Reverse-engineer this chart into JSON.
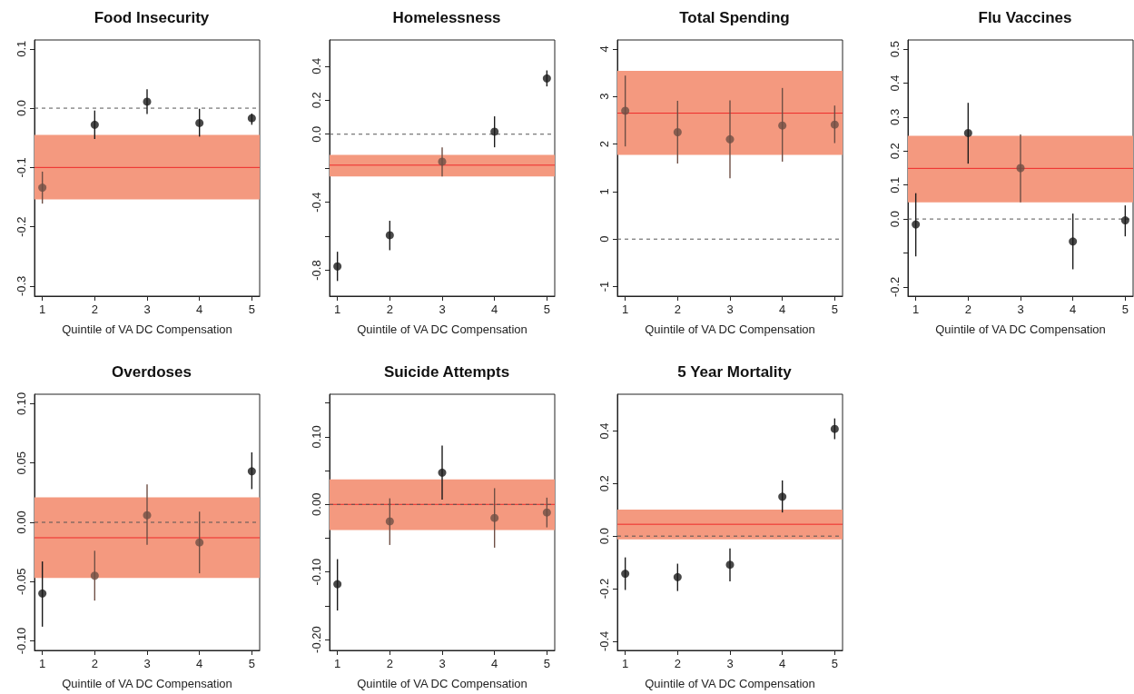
{
  "chart_data": [
    {
      "type": "scatter",
      "title": "Food Insecurity",
      "xlabel": "Quintile of VA DC Compensation",
      "x": [
        1,
        2,
        3,
        4,
        5
      ],
      "xlim": [
        0.85,
        5.15
      ],
      "xticks": [
        1,
        2,
        3,
        4,
        5
      ],
      "ylim": [
        -0.317,
        0.115
      ],
      "yticks": [
        0.1,
        {
          "value": 0,
          "label": "0.0"
        },
        -0.1,
        -0.2,
        -0.3
      ],
      "grid": false,
      "marker": "circle",
      "values": [
        -0.134,
        -0.028,
        0.011,
        -0.025,
        -0.017
      ],
      "errors": [
        [
          -0.161,
          -0.107
        ],
        [
          -0.052,
          -0.004
        ],
        [
          -0.01,
          0.032
        ],
        [
          -0.048,
          -0.001
        ],
        [
          -0.028,
          -0.009
        ]
      ],
      "colors": [
        "#6e4f45",
        "#1a1a1a",
        "#1a1a1a",
        "#1a1a1a",
        "#1a1a1a"
      ],
      "ref_lines": [
        {
          "axis": "y",
          "value": 0,
          "color": "#555555",
          "line_style": "dashed"
        },
        {
          "axis": "y",
          "value": -0.1,
          "color": "#ee2a2a",
          "line_style": "solid"
        }
      ],
      "bands": [
        {
          "axis": "y",
          "from": -0.154,
          "to": -0.045,
          "color": "#f4997f"
        }
      ]
    },
    {
      "type": "scatter",
      "title": "Homelessness",
      "xlabel": "Quintile of VA DC Compensation",
      "x": [
        1,
        2,
        3,
        4,
        5
      ],
      "xlim": [
        0.85,
        5.15
      ],
      "xticks": [
        1,
        2,
        3,
        4,
        5
      ],
      "ylim": [
        -0.952,
        0.554
      ],
      "yticks": [
        0.4,
        0.2,
        {
          "value": 0,
          "label": "0.0"
        },
        {
          "value": -0.2,
          "label": null
        },
        -0.4,
        {
          "value": -0.6,
          "label": null
        },
        -0.8
      ],
      "grid": false,
      "marker": "circle",
      "values": [
        -0.777,
        -0.594,
        -0.161,
        0.015,
        0.328
      ],
      "errors": [
        [
          -0.863,
          -0.691
        ],
        [
          -0.682,
          -0.509
        ],
        [
          -0.249,
          -0.077
        ],
        [
          -0.077,
          0.105
        ],
        [
          0.281,
          0.375
        ]
      ],
      "colors": [
        "#1a1a1a",
        "#1a1a1a",
        "#6e4f45",
        "#1a1a1a",
        "#1a1a1a"
      ],
      "ref_lines": [
        {
          "axis": "y",
          "value": 0,
          "color": "#555555",
          "line_style": "dashed"
        },
        {
          "axis": "y",
          "value": -0.182,
          "color": "#ee2a2a",
          "line_style": "solid"
        }
      ],
      "bands": [
        {
          "axis": "y",
          "from": -0.249,
          "to": -0.122,
          "color": "#f4997f"
        }
      ]
    },
    {
      "type": "scatter",
      "title": "Total Spending",
      "xlabel": "Quintile of VA DC Compensation",
      "x": [
        1,
        2,
        3,
        4,
        5
      ],
      "xlim": [
        0.85,
        5.15
      ],
      "xticks": [
        1,
        2,
        3,
        4,
        5
      ],
      "ylim": [
        -1.2,
        4.19
      ],
      "yticks": [
        4,
        3,
        2,
        1,
        0,
        -1
      ],
      "grid": false,
      "marker": "circle",
      "values": [
        2.7,
        2.25,
        2.1,
        2.39,
        2.41
      ],
      "errors": [
        [
          1.95,
          3.44
        ],
        [
          1.59,
          2.91
        ],
        [
          1.28,
          2.92
        ],
        [
          1.63,
          3.18
        ],
        [
          2.02,
          2.81
        ]
      ],
      "colors": [
        "#6e4f45",
        "#6e4f45",
        "#6e4f45",
        "#6e4f45",
        "#6e4f45"
      ],
      "ref_lines": [
        {
          "axis": "y",
          "value": 0,
          "color": "#555555",
          "line_style": "dashed"
        },
        {
          "axis": "y",
          "value": 2.65,
          "color": "#ee2a2a",
          "line_style": "solid"
        }
      ],
      "bands": [
        {
          "axis": "y",
          "from": 1.77,
          "to": 3.54,
          "color": "#f4997f"
        }
      ]
    },
    {
      "type": "scatter",
      "title": "Flu Vaccines",
      "xlabel": "Quintile of VA DC Compensation",
      "x": [
        1,
        2,
        3,
        4,
        5
      ],
      "xlim": [
        0.85,
        5.15
      ],
      "xticks": [
        1,
        2,
        3,
        4,
        5
      ],
      "ylim": [
        -0.227,
        0.527
      ],
      "yticks": [
        0.5,
        0.4,
        0.3,
        0.2,
        0.1,
        {
          "value": 0,
          "label": "0.0"
        },
        {
          "value": -0.1,
          "label": null
        },
        -0.2
      ],
      "grid": false,
      "marker": "circle",
      "values": [
        -0.016,
        0.253,
        0.15,
        -0.066,
        -0.004
      ],
      "errors": [
        [
          -0.11,
          0.076
        ],
        [
          0.163,
          0.342
        ],
        [
          0.049,
          0.249
        ],
        [
          -0.148,
          0.016
        ],
        [
          -0.051,
          0.04
        ]
      ],
      "colors": [
        "#1a1a1a",
        "#1a1a1a",
        "#6e4f45",
        "#1a1a1a",
        "#1a1a1a"
      ],
      "ref_lines": [
        {
          "axis": "y",
          "value": 0,
          "color": "#555555",
          "line_style": "dashed"
        },
        {
          "axis": "y",
          "value": 0.149,
          "color": "#ee2a2a",
          "line_style": "solid"
        }
      ],
      "bands": [
        {
          "axis": "y",
          "from": 0.049,
          "to": 0.245,
          "color": "#f4997f"
        }
      ]
    },
    {
      "type": "scatter",
      "title": "Overdoses",
      "xlabel": "Quintile of VA DC Compensation",
      "x": [
        1,
        2,
        3,
        4,
        5
      ],
      "xlim": [
        0.85,
        5.15
      ],
      "xticks": [
        1,
        2,
        3,
        4,
        5
      ],
      "ylim": [
        -0.108,
        0.108
      ],
      "yticks": [
        {
          "value": 0.1,
          "label": "0.10"
        },
        0.05,
        {
          "value": 0,
          "label": "0.00"
        },
        -0.05,
        {
          "value": -0.1,
          "label": "-0.10"
        }
      ],
      "grid": false,
      "marker": "circle",
      "values": [
        -0.06,
        -0.045,
        0.006,
        -0.017,
        0.043
      ],
      "errors": [
        [
          -0.088,
          -0.033
        ],
        [
          -0.066,
          -0.024
        ],
        [
          -0.019,
          0.032
        ],
        [
          -0.043,
          0.009
        ],
        [
          0.028,
          0.059
        ]
      ],
      "colors": [
        "#1a1a1a",
        "#6e4f45",
        "#6e4f45",
        "#6e4f45",
        "#1a1a1a"
      ],
      "ref_lines": [
        {
          "axis": "y",
          "value": 0,
          "color": "#555555",
          "line_style": "dashed"
        },
        {
          "axis": "y",
          "value": -0.013,
          "color": "#ee2a2a",
          "line_style": "solid"
        }
      ],
      "bands": [
        {
          "axis": "y",
          "from": -0.047,
          "to": 0.021,
          "color": "#f4997f"
        }
      ]
    },
    {
      "type": "scatter",
      "title": "Suicide Attempts",
      "xlabel": "Quintile of VA DC Compensation",
      "x": [
        1,
        2,
        3,
        4,
        5
      ],
      "xlim": [
        0.85,
        5.15
      ],
      "xticks": [
        1,
        2,
        3,
        4,
        5
      ],
      "ylim": [
        -0.216,
        0.163
      ],
      "yticks": [
        {
          "value": 0.15,
          "label": null
        },
        {
          "value": 0.1,
          "label": "0.10"
        },
        {
          "value": 0.05,
          "label": null
        },
        {
          "value": 0,
          "label": "0.00"
        },
        {
          "value": -0.05,
          "label": null
        },
        {
          "value": -0.1,
          "label": "-0.10"
        },
        {
          "value": -0.15,
          "label": null
        },
        {
          "value": -0.2,
          "label": "-0.20"
        }
      ],
      "grid": false,
      "marker": "circle",
      "values": [
        -0.118,
        -0.025,
        0.047,
        -0.02,
        -0.012
      ],
      "errors": [
        [
          -0.157,
          -0.081
        ],
        [
          -0.06,
          0.009
        ],
        [
          0.007,
          0.087
        ],
        [
          -0.064,
          0.024
        ],
        [
          -0.034,
          0.01
        ]
      ],
      "colors": [
        "#1a1a1a",
        "#6e4f45",
        "#1a1a1a",
        "#6e4f45",
        "#6e4f45"
      ],
      "ref_lines": [
        {
          "axis": "y",
          "value": 0,
          "color": "#ee2a2a",
          "line_style": "solid"
        },
        {
          "axis": "y",
          "value": 0,
          "color": "#555555",
          "line_style": "dashed"
        }
      ],
      "bands": [
        {
          "axis": "y",
          "from": -0.038,
          "to": 0.037,
          "color": "#f4997f"
        }
      ]
    },
    {
      "type": "scatter",
      "title": "5 Year Mortality",
      "xlabel": "Quintile of VA DC Compensation",
      "x": [
        1,
        2,
        3,
        4,
        5
      ],
      "xlim": [
        0.85,
        5.15
      ],
      "xticks": [
        1,
        2,
        3,
        4,
        5
      ],
      "ylim": [
        -0.435,
        0.54
      ],
      "yticks": [
        0.4,
        0.2,
        {
          "value": 0,
          "label": "0.0"
        },
        -0.2,
        -0.4
      ],
      "grid": false,
      "marker": "circle",
      "values": [
        -0.143,
        -0.156,
        -0.109,
        0.15,
        0.408
      ],
      "errors": [
        [
          -0.205,
          -0.081
        ],
        [
          -0.209,
          -0.105
        ],
        [
          -0.172,
          -0.047
        ],
        [
          0.09,
          0.212
        ],
        [
          0.369,
          0.448
        ]
      ],
      "colors": [
        "#1a1a1a",
        "#1a1a1a",
        "#1a1a1a",
        "#1a1a1a",
        "#1a1a1a"
      ],
      "ref_lines": [
        {
          "axis": "y",
          "value": 0,
          "color": "#555555",
          "line_style": "dashed"
        },
        {
          "axis": "y",
          "value": 0.045,
          "color": "#ee2a2a",
          "line_style": "solid"
        }
      ],
      "bands": [
        {
          "axis": "y",
          "from": -0.012,
          "to": 0.101,
          "color": "#f4997f"
        }
      ]
    }
  ]
}
